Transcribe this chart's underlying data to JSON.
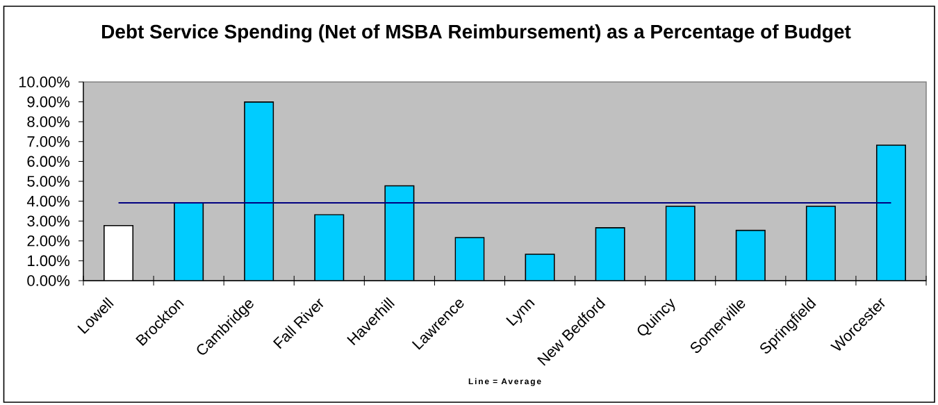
{
  "chart_data": {
    "type": "bar",
    "title": "Debt Service Spending (Net of MSBA Reimbursement) as a Percentage of Budget",
    "categories": [
      "Lowell",
      "Brockton",
      "Cambridge",
      "Fall River",
      "Haverhill",
      "Lawrence",
      "Lynn",
      "New Bedford",
      "Quincy",
      "Somerville",
      "Springfield",
      "Worcester"
    ],
    "series": [
      {
        "colors": [
          "#ffffff",
          "#00ccff",
          "#00ccff",
          "#00ccff",
          "#00ccff",
          "#00ccff",
          "#00ccff",
          "#00ccff",
          "#00ccff",
          "#00ccff",
          "#00ccff",
          "#00ccff"
        ],
        "values": [
          2.77,
          3.92,
          8.99,
          3.32,
          4.77,
          2.17,
          1.33,
          2.66,
          3.74,
          2.53,
          3.74,
          6.82
        ]
      },
      {
        "type": "line",
        "color": "#000080",
        "values": [
          3.92,
          3.92,
          3.92,
          3.92,
          3.92,
          3.92,
          3.92,
          3.92,
          3.92,
          3.92,
          3.92,
          3.92
        ]
      }
    ],
    "ylim": [
      0,
      10
    ],
    "yticks": [
      {
        "value": 0,
        "label": "0.00%"
      },
      {
        "value": 1,
        "label": "1.00%"
      },
      {
        "value": 2,
        "label": "2.00%"
      },
      {
        "value": 3,
        "label": "3.00%"
      },
      {
        "value": 4,
        "label": "4.00%"
      },
      {
        "value": 5,
        "label": "5.00%"
      },
      {
        "value": 6,
        "label": "6.00%"
      },
      {
        "value": 7,
        "label": "7.00%"
      },
      {
        "value": 8,
        "label": "8.00%"
      },
      {
        "value": 9,
        "label": "9.00%"
      },
      {
        "value": 10,
        "label": "10.00%"
      }
    ],
    "annotations": [
      "Line = Average"
    ]
  }
}
